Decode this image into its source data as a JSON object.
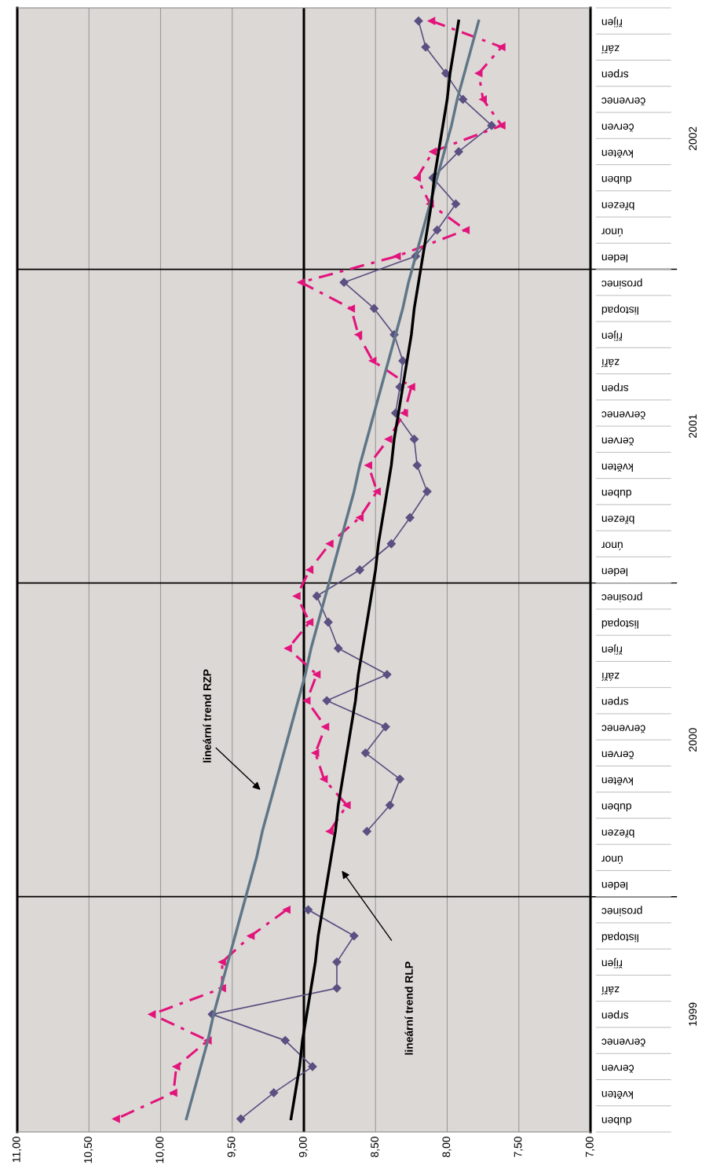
{
  "chart_data": {
    "type": "line",
    "orientation": "horizontal",
    "categories": [
      "říjen",
      "září",
      "srpen",
      "červenec",
      "červen",
      "květen",
      "duben",
      "březen",
      "únor",
      "leden",
      "prosinec",
      "listopad",
      "říjen",
      "září",
      "srpen",
      "červenec",
      "červen",
      "květen",
      "duben",
      "březen",
      "únor",
      "leden",
      "prosinec",
      "listopad",
      "říjen",
      "září",
      "srpen",
      "červenec",
      "červen",
      "květen",
      "duben",
      "březen",
      "únor",
      "leden",
      "prosinec",
      "listopad",
      "říjen",
      "září",
      "srpen",
      "červenec",
      "červen",
      "květen",
      "duben"
    ],
    "series": [
      {
        "color": "#5a5082",
        "marker": "diamond",
        "line_style": "solid",
        "values": [
          8.2,
          8.15,
          8.01,
          7.89,
          7.69,
          7.92,
          8.1,
          7.94,
          8.07,
          8.22,
          8.72,
          8.51,
          8.37,
          8.31,
          8.33,
          8.36,
          8.23,
          8.21,
          8.14,
          8.26,
          8.39,
          8.61,
          8.91,
          8.83,
          8.76,
          8.42,
          8.84,
          8.43,
          8.57,
          8.33,
          8.4,
          8.56,
          null,
          null,
          8.97,
          8.65,
          8.77,
          8.77,
          9.64,
          9.13,
          8.94,
          9.21,
          9.44
        ]
      },
      {
        "color": "#e2147c",
        "marker": "triangle",
        "line_style": "dashed",
        "values": [
          8.11,
          7.62,
          7.78,
          7.75,
          7.62,
          8.1,
          8.21,
          8.12,
          7.87,
          8.35,
          9.02,
          8.67,
          8.62,
          8.52,
          8.25,
          8.3,
          8.41,
          8.55,
          8.49,
          8.61,
          8.82,
          8.96,
          9.05,
          8.96,
          9.11,
          8.91,
          8.98,
          8.85,
          8.92,
          8.86,
          8.7,
          8.82,
          null,
          null,
          9.12,
          9.37,
          9.57,
          9.57,
          10.06,
          9.67,
          9.89,
          9.91,
          10.31
        ]
      },
      {
        "color": "#5f7687",
        "marker": "none",
        "line_style": "solid",
        "values": [
          7.78,
          7.83,
          7.88,
          7.93,
          7.97,
          8.02,
          8.07,
          8.12,
          8.17,
          8.22,
          8.27,
          8.31,
          8.36,
          8.41,
          8.46,
          8.51,
          8.56,
          8.61,
          8.65,
          8.7,
          8.75,
          8.8,
          8.85,
          8.9,
          8.95,
          8.99,
          9.04,
          9.09,
          9.14,
          9.19,
          9.24,
          9.29,
          9.33,
          9.38,
          9.43,
          9.48,
          9.53,
          9.58,
          9.63,
          9.67,
          9.72,
          9.77,
          9.82
        ]
      },
      {
        "color": "#000000",
        "marker": "none",
        "line_style": "solid",
        "values": [
          7.92,
          7.95,
          7.98,
          8.0,
          8.03,
          8.06,
          8.09,
          8.11,
          8.14,
          8.17,
          8.2,
          8.23,
          8.25,
          8.28,
          8.31,
          8.34,
          8.37,
          8.39,
          8.42,
          8.45,
          8.48,
          8.5,
          8.53,
          8.56,
          8.59,
          8.62,
          8.64,
          8.67,
          8.7,
          8.73,
          8.76,
          8.78,
          8.81,
          8.84,
          8.87,
          8.9,
          8.92,
          8.95,
          8.98,
          9.01,
          9.03,
          9.06,
          9.09
        ]
      }
    ],
    "xlim": [
      11,
      7
    ],
    "xticks": [
      {
        "value": 11,
        "label": "11,00"
      },
      {
        "value": 10.5,
        "label": "10,50"
      },
      {
        "value": 10,
        "label": "10,00"
      },
      {
        "value": 9.5,
        "label": "9,50"
      },
      {
        "value": 9,
        "label": "9,00"
      },
      {
        "value": 8.5,
        "label": "8,50"
      },
      {
        "value": 8,
        "label": "8,00"
      },
      {
        "value": 7.5,
        "label": "7,50"
      },
      {
        "value": 7,
        "label": "7,00"
      }
    ],
    "grid": "x",
    "ref_lines": [
      {
        "axis": "x",
        "value": 9,
        "color": "#000000"
      }
    ],
    "annotations": [
      "2002",
      "2001",
      "2000",
      "1999",
      "lineární trend RZP",
      "lineární trend RLP"
    ],
    "legend": false
  }
}
